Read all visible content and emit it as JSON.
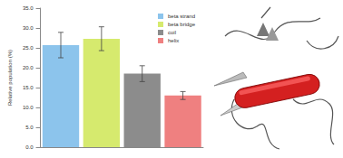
{
  "chart_data": {
    "type": "bar",
    "y_label": "Relative population (%)",
    "categories": [
      null,
      null,
      null,
      null
    ],
    "series": [
      {
        "name": "beta strand",
        "color": "#8cc4ec",
        "values": [
          25.7,
          null,
          null,
          null
        ],
        "errors": [
          3.2,
          null,
          null,
          null
        ]
      },
      {
        "name": "beta bridge",
        "color": "#d6ea6e",
        "values": [
          null,
          27.3,
          null,
          null
        ],
        "errors": [
          null,
          3.0,
          null,
          null
        ]
      },
      {
        "name": "coil",
        "color": "#8c8c8c",
        "values": [
          null,
          null,
          18.5,
          null
        ],
        "errors": [
          null,
          null,
          2.0,
          null
        ]
      },
      {
        "name": "helix",
        "color": "#ef8080",
        "values": [
          null,
          null,
          null,
          13.0
        ],
        "errors": [
          null,
          null,
          null,
          1.0
        ]
      }
    ],
    "ylim": [
      0,
      35
    ],
    "yticks": [
      {
        "value": 0,
        "label": "0.0"
      },
      {
        "value": 5,
        "label": "5.0"
      },
      {
        "value": 10,
        "label": "10.0"
      },
      {
        "value": 15,
        "label": "15.0"
      },
      {
        "value": 20,
        "label": "20.0"
      },
      {
        "value": 25,
        "label": "25.0"
      },
      {
        "value": 30,
        "label": "30.0"
      },
      {
        "value": 35,
        "label": "35.0"
      }
    ],
    "grid": false,
    "legend": "upper right",
    "tick_labels": "y"
  }
}
